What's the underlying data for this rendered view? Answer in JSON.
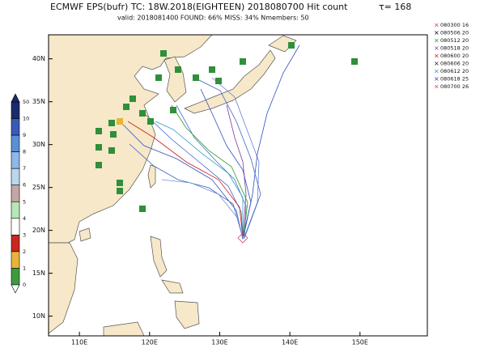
{
  "header": {
    "title": "ECMWF EPS(bufr) TC: 18W.2018(EIGHTEEN) 2018080700 Hit count",
    "tau": "τ= 168",
    "subtitle": "valid: 2018081400   FOUND: 66%   MISS: 34%        Nmembers: 50"
  },
  "map": {
    "xlim": [
      105.6,
      159.6
    ],
    "ylim": [
      7.7,
      42.8
    ],
    "xticks": [
      {
        "value": 110,
        "label": "110E"
      },
      {
        "value": 120,
        "label": "120E"
      },
      {
        "value": 130,
        "label": "130E"
      },
      {
        "value": 140,
        "label": "140E"
      },
      {
        "value": 150,
        "label": "150E"
      }
    ],
    "yticks": [
      {
        "value": 10,
        "label": "10N"
      },
      {
        "value": 15,
        "label": "15N"
      },
      {
        "value": 20,
        "label": "20N"
      },
      {
        "value": 25,
        "label": "25N"
      },
      {
        "value": 30,
        "label": "30N"
      },
      {
        "value": 35,
        "label": "35N"
      },
      {
        "value": 40,
        "label": "40N"
      }
    ]
  },
  "colorbar": {
    "labels": [
      "50",
      "10",
      "9",
      "8",
      "7",
      "6",
      "5",
      "4",
      "3",
      "2",
      "1",
      "0"
    ],
    "colors": [
      "#1c2a6e",
      "#3a5bb5",
      "#5b8fd6",
      "#8db9e8",
      "#bcd6ee",
      "#c4a6a4",
      "#b8e6b8",
      "#ffffff",
      "#c8281e",
      "#e8b43a",
      "#3f9a3f"
    ]
  },
  "legend": [
    {
      "label": "080300  16",
      "color": "#e0307a"
    },
    {
      "label": "080506  20",
      "color": "#000000"
    },
    {
      "label": "080512  20",
      "color": "#2a9a2a"
    },
    {
      "label": "080518  20",
      "color": "#7a3aa0"
    },
    {
      "label": "080600  20",
      "color": "#c82020"
    },
    {
      "label": "080606  20",
      "color": "#202020"
    },
    {
      "label": "080612  20",
      "color": "#30a0c0"
    },
    {
      "label": "080618  25",
      "color": "#2040c0"
    },
    {
      "label": "080700  26",
      "color": "#d04080"
    }
  ]
}
